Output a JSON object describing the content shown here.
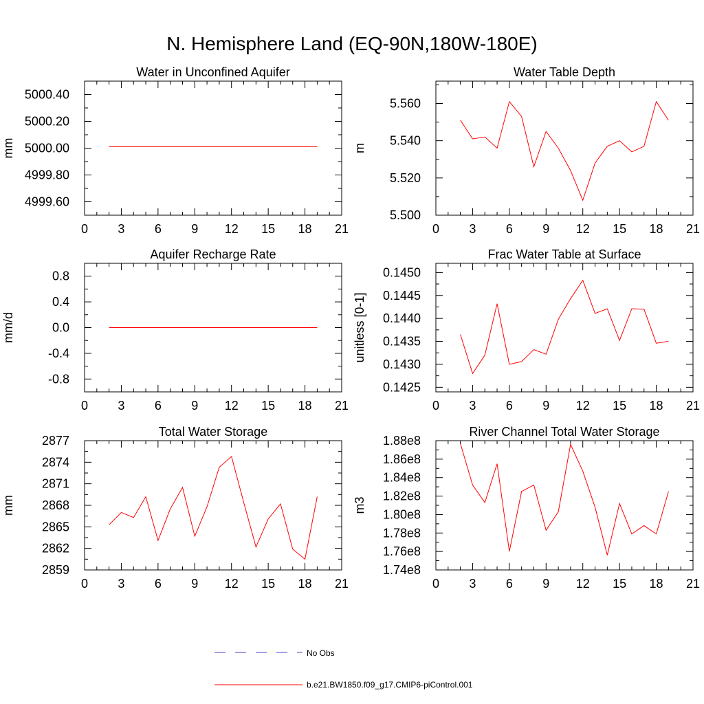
{
  "figure": {
    "title": "N. Hemisphere Land (EQ-90N,180W-180E)"
  },
  "legend": {
    "items": [
      {
        "label": "No Obs",
        "color": "#4040c0",
        "style": "dashed"
      },
      {
        "label": "b.e21.BW1850.f09_g17.CMIP6-piControl.001",
        "color": "#ff0000",
        "style": "solid"
      }
    ]
  },
  "colors": {
    "series": "#ff0000",
    "axis": "#000000"
  },
  "chart_data": [
    {
      "type": "line",
      "title": "Water in Unconfined Aquifer",
      "ylabel": "mm",
      "xlabel": "",
      "xlim": [
        0,
        21
      ],
      "ylim": [
        4999.5,
        5000.5
      ],
      "xticks": [
        0,
        3,
        6,
        9,
        12,
        15,
        18,
        21
      ],
      "yticks": [
        4999.6,
        4999.8,
        5000.0,
        5000.2,
        5000.4
      ],
      "ytick_labels": [
        "4999.60",
        "4999.80",
        "5000.00",
        "5000.20",
        "5000.40"
      ],
      "x": [
        2,
        3,
        4,
        5,
        6,
        7,
        8,
        9,
        10,
        11,
        12,
        13,
        14,
        15,
        16,
        17,
        18,
        19
      ],
      "series": [
        {
          "values": [
            5000.01,
            5000.01,
            5000.01,
            5000.01,
            5000.01,
            5000.01,
            5000.01,
            5000.01,
            5000.01,
            5000.01,
            5000.01,
            5000.01,
            5000.01,
            5000.01,
            5000.01,
            5000.01,
            5000.01,
            5000.01
          ]
        }
      ]
    },
    {
      "type": "line",
      "title": "Water Table Depth",
      "ylabel": "m",
      "xlabel": "",
      "xlim": [
        0,
        21
      ],
      "ylim": [
        5.5,
        5.572
      ],
      "xticks": [
        0,
        3,
        6,
        9,
        12,
        15,
        18,
        21
      ],
      "yticks": [
        5.5,
        5.52,
        5.54,
        5.56
      ],
      "ytick_labels": [
        "5.500",
        "5.520",
        "5.540",
        "5.560"
      ],
      "x": [
        2,
        3,
        4,
        5,
        6,
        7,
        8,
        9,
        10,
        11,
        12,
        13,
        14,
        15,
        16,
        17,
        18,
        19
      ],
      "series": [
        {
          "values": [
            5.551,
            5.541,
            5.542,
            5.536,
            5.561,
            5.553,
            5.526,
            5.545,
            5.536,
            5.524,
            5.508,
            5.528,
            5.537,
            5.54,
            5.534,
            5.537,
            5.561,
            5.551
          ]
        }
      ]
    },
    {
      "type": "line",
      "title": "Aquifer Recharge Rate",
      "ylabel": "mm/d",
      "xlabel": "",
      "xlim": [
        0,
        21
      ],
      "ylim": [
        -1.0,
        1.0
      ],
      "xticks": [
        0,
        3,
        6,
        9,
        12,
        15,
        18,
        21
      ],
      "yticks": [
        -0.8,
        -0.4,
        0.0,
        0.4,
        0.8
      ],
      "ytick_labels": [
        "-0.8",
        "-0.4",
        "0.0",
        "0.4",
        "0.8"
      ],
      "x": [
        2,
        3,
        4,
        5,
        6,
        7,
        8,
        9,
        10,
        11,
        12,
        13,
        14,
        15,
        16,
        17,
        18,
        19
      ],
      "series": [
        {
          "values": [
            0,
            0,
            0,
            0,
            0,
            0,
            0,
            0,
            0,
            0,
            0,
            0,
            0,
            0,
            0,
            0,
            0,
            0
          ]
        }
      ]
    },
    {
      "type": "line",
      "title": "Frac Water Table at Surface",
      "ylabel": "unitless [0-1]",
      "xlabel": "",
      "xlim": [
        0,
        21
      ],
      "ylim": [
        0.1424,
        0.1452
      ],
      "xticks": [
        0,
        3,
        6,
        9,
        12,
        15,
        18,
        21
      ],
      "yticks": [
        0.1425,
        0.143,
        0.1435,
        0.144,
        0.1445,
        0.145
      ],
      "ytick_labels": [
        "0.1425",
        "0.1430",
        "0.1435",
        "0.1440",
        "0.1445",
        "0.1450"
      ],
      "x": [
        2,
        3,
        4,
        5,
        6,
        7,
        8,
        9,
        10,
        11,
        12,
        13,
        14,
        15,
        16,
        17,
        18,
        19
      ],
      "series": [
        {
          "values": [
            0.14365,
            0.1428,
            0.1432,
            0.14432,
            0.143,
            0.14306,
            0.14332,
            0.14322,
            0.14398,
            0.14443,
            0.14483,
            0.14411,
            0.14421,
            0.14352,
            0.14421,
            0.1442,
            0.14346,
            0.1435
          ]
        }
      ]
    },
    {
      "type": "line",
      "title": "Total Water Storage",
      "ylabel": "mm",
      "xlabel": "",
      "xlim": [
        0,
        21
      ],
      "ylim": [
        2859,
        2877
      ],
      "xticks": [
        0,
        3,
        6,
        9,
        12,
        15,
        18,
        21
      ],
      "yticks": [
        2859,
        2862,
        2865,
        2868,
        2871,
        2874,
        2877
      ],
      "ytick_labels": [
        "2859",
        "2862",
        "2865",
        "2868",
        "2871",
        "2874",
        "2877"
      ],
      "x": [
        2,
        3,
        4,
        5,
        6,
        7,
        8,
        9,
        10,
        11,
        12,
        13,
        14,
        15,
        16,
        17,
        18,
        19
      ],
      "series": [
        {
          "values": [
            2865.3,
            2867.0,
            2866.3,
            2869.2,
            2863.1,
            2867.5,
            2870.5,
            2863.7,
            2867.8,
            2873.3,
            2874.8,
            2868.4,
            2862.2,
            2866.1,
            2868.2,
            2861.9,
            2860.5,
            2869.2
          ]
        }
      ]
    },
    {
      "type": "line",
      "title": "River Channel Total Water Storage",
      "ylabel": "m3",
      "xlabel": "",
      "xlim": [
        0,
        21
      ],
      "ylim": [
        174000000,
        188000000
      ],
      "xticks": [
        0,
        3,
        6,
        9,
        12,
        15,
        18,
        21
      ],
      "yticks": [
        174000000,
        176000000,
        178000000,
        180000000,
        182000000,
        184000000,
        186000000,
        188000000
      ],
      "ytick_labels": [
        "1.74e8",
        "1.76e8",
        "1.78e8",
        "1.80e8",
        "1.82e8",
        "1.84e8",
        "1.86e8",
        "1.88e8"
      ],
      "x": [
        2,
        3,
        4,
        5,
        6,
        7,
        8,
        9,
        10,
        11,
        12,
        13,
        14,
        15,
        16,
        17,
        18,
        19
      ],
      "series": [
        {
          "values": [
            187700000,
            183200000,
            181300000,
            185500000,
            176000000,
            182500000,
            183200000,
            178300000,
            180300000,
            187600000,
            184700000,
            180800000,
            175600000,
            181200000,
            177900000,
            178800000,
            177900000,
            182500000
          ]
        }
      ]
    }
  ]
}
